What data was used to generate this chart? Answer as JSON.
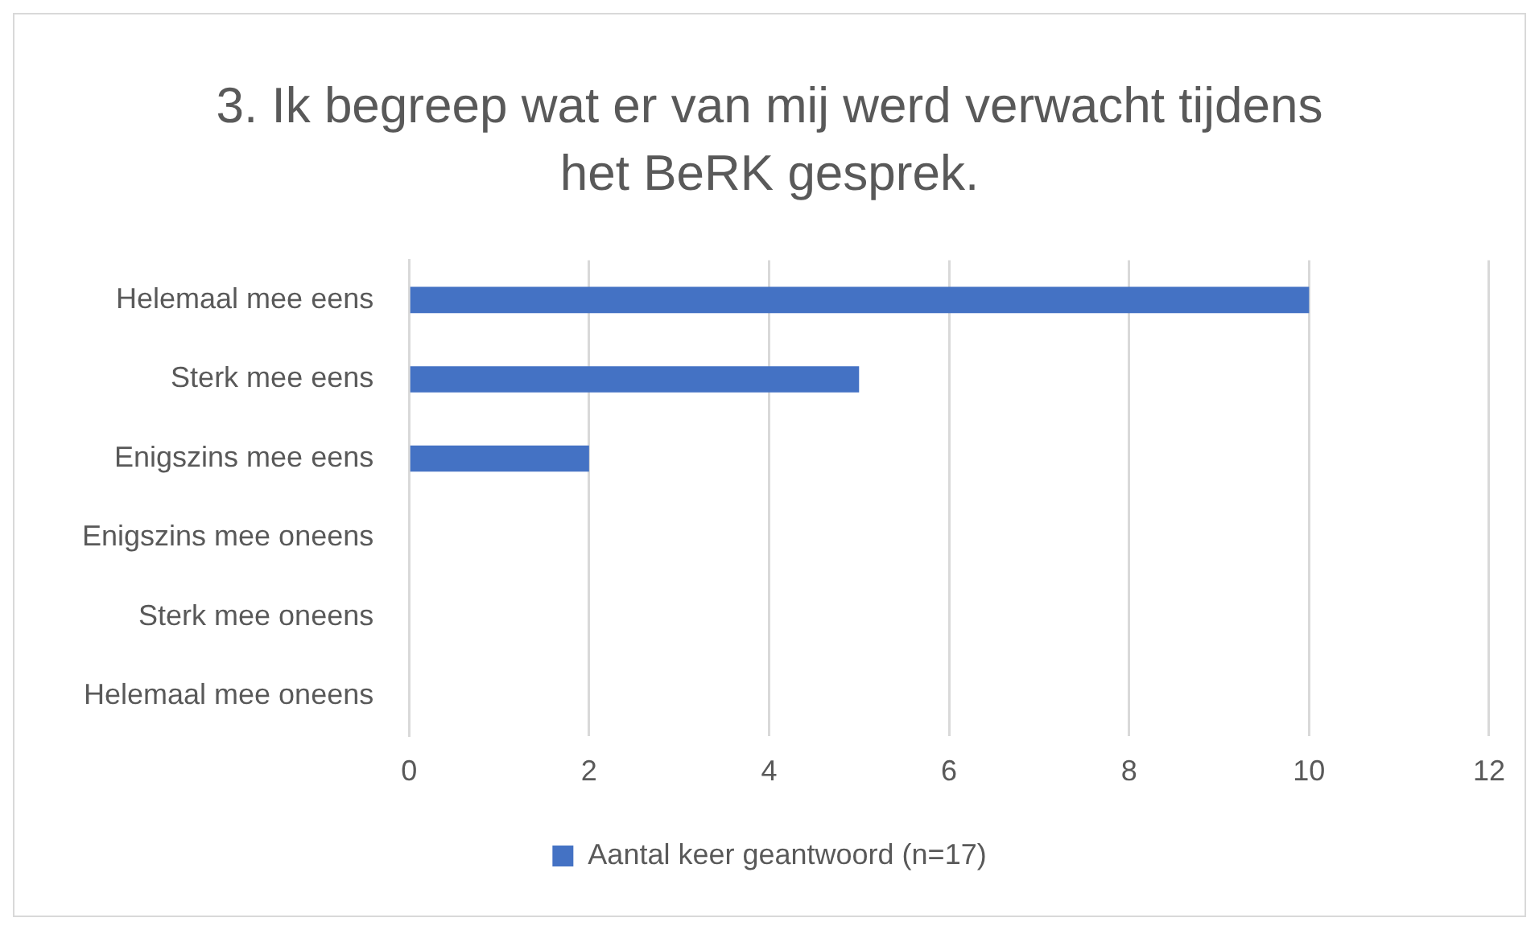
{
  "chart_data": {
    "type": "bar",
    "orientation": "horizontal",
    "title": "3. Ik begreep wat er van mij werd verwacht tijdens het BeRK gesprek.",
    "categories": [
      "Helemaal mee eens",
      "Sterk mee eens",
      "Enigszins mee eens",
      "Enigszins mee oneens",
      "Sterk mee oneens",
      "Helemaal mee oneens"
    ],
    "series": [
      {
        "name": "Aantal keer geantwoord (n=17)",
        "color": "#4472c4",
        "values": [
          10,
          5,
          2,
          0,
          0,
          0
        ]
      }
    ],
    "xlim": [
      0,
      12
    ],
    "xticks": [
      0,
      2,
      4,
      6,
      8,
      10,
      12
    ],
    "grid": "x",
    "legend": "bottom"
  }
}
